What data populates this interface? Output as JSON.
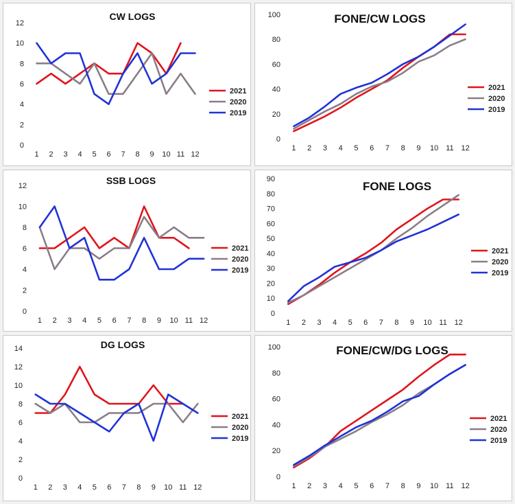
{
  "colors": {
    "2021": "#e0141b",
    "2020": "#8a7d87",
    "2019": "#1f33d6"
  },
  "chart_data": [
    {
      "id": "cw",
      "type": "line",
      "title": "CW LOGS",
      "categories": [
        "1",
        "2",
        "3",
        "4",
        "5",
        "6",
        "7",
        "8",
        "9",
        "10",
        "11",
        "12"
      ],
      "ylim": [
        0,
        12
      ],
      "yticks": [
        "0",
        "2",
        "4",
        "6",
        "8",
        "10",
        "12"
      ],
      "series": [
        {
          "name": "2021",
          "values": [
            6,
            7,
            6,
            7,
            8,
            7,
            7,
            10,
            9,
            7,
            10,
            null
          ]
        },
        {
          "name": "2020",
          "values": [
            8,
            8,
            7,
            6,
            8,
            5,
            5,
            7,
            9,
            5,
            7,
            5
          ]
        },
        {
          "name": "2019",
          "values": [
            10,
            8,
            9,
            9,
            5,
            4,
            7,
            9,
            6,
            7,
            9,
            9
          ]
        }
      ]
    },
    {
      "id": "fonecw",
      "type": "line",
      "title": "FONE/CW LOGS",
      "categories": [
        "1",
        "2",
        "3",
        "4",
        "5",
        "6",
        "7",
        "8",
        "9",
        "10",
        "11",
        "12"
      ],
      "ylim": [
        0,
        100
      ],
      "yticks": [
        "0",
        "20",
        "40",
        "60",
        "80",
        "100"
      ],
      "series": [
        {
          "name": "2021",
          "values": [
            6,
            12,
            18,
            25,
            33,
            40,
            47,
            57,
            66,
            74,
            84,
            84
          ]
        },
        {
          "name": "2020",
          "values": [
            8,
            15,
            22,
            28,
            36,
            42,
            46,
            53,
            62,
            67,
            75,
            80
          ]
        },
        {
          "name": "2019",
          "values": [
            10,
            17,
            26,
            36,
            41,
            45,
            52,
            60,
            66,
            74,
            83,
            92
          ]
        }
      ]
    },
    {
      "id": "ssb",
      "type": "line",
      "title": "SSB LOGS",
      "categories": [
        "1",
        "2",
        "3",
        "4",
        "5",
        "6",
        "7",
        "8",
        "9",
        "10",
        "11",
        "12"
      ],
      "ylim": [
        0,
        12
      ],
      "yticks": [
        "0",
        "2",
        "4",
        "6",
        "8",
        "10",
        "12"
      ],
      "series": [
        {
          "name": "2021",
          "values": [
            6,
            6,
            7,
            8,
            6,
            7,
            6,
            10,
            7,
            7,
            6,
            null
          ]
        },
        {
          "name": "2020",
          "values": [
            8,
            4,
            6,
            6,
            5,
            6,
            6,
            9,
            7,
            8,
            7,
            7
          ]
        },
        {
          "name": "2019",
          "values": [
            8,
            10,
            6,
            7,
            3,
            3,
            4,
            7,
            4,
            4,
            5,
            5
          ]
        }
      ]
    },
    {
      "id": "fone",
      "type": "line",
      "title": "FONE LOGS",
      "categories": [
        "1",
        "2",
        "3",
        "4",
        "5",
        "6",
        "7",
        "8",
        "9",
        "10",
        "11",
        "12"
      ],
      "ylim": [
        0,
        90
      ],
      "yticks": [
        "0",
        "10",
        "20",
        "30",
        "40",
        "50",
        "60",
        "70",
        "80",
        "90"
      ],
      "series": [
        {
          "name": "2021",
          "values": [
            6,
            12,
            19,
            27,
            34,
            40,
            47,
            56,
            63,
            70,
            76,
            76
          ]
        },
        {
          "name": "2020",
          "values": [
            7,
            12,
            18,
            24,
            30,
            36,
            42,
            50,
            57,
            65,
            72,
            79
          ]
        },
        {
          "name": "2019",
          "values": [
            8,
            18,
            24,
            31,
            34,
            37,
            42,
            48,
            52,
            56,
            61,
            66
          ]
        }
      ]
    },
    {
      "id": "dg",
      "type": "line",
      "title": "DG LOGS",
      "categories": [
        "1",
        "2",
        "3",
        "4",
        "5",
        "6",
        "7",
        "8",
        "9",
        "10",
        "11",
        "12"
      ],
      "ylim": [
        0,
        14
      ],
      "yticks": [
        "0",
        "2",
        "4",
        "6",
        "8",
        "10",
        "12",
        "14"
      ],
      "series": [
        {
          "name": "2021",
          "values": [
            7,
            7,
            9,
            12,
            9,
            8,
            8,
            8,
            10,
            8,
            8,
            null
          ]
        },
        {
          "name": "2020",
          "values": [
            8,
            7,
            8,
            6,
            6,
            7,
            7,
            7,
            8,
            8,
            6,
            8
          ]
        },
        {
          "name": "2019",
          "values": [
            9,
            8,
            8,
            7,
            6,
            5,
            7,
            8,
            4,
            9,
            8,
            7
          ]
        }
      ]
    },
    {
      "id": "fonecwdg",
      "type": "line",
      "title": "FONE/CW/DG LOGS",
      "categories": [
        "1",
        "2",
        "3",
        "4",
        "5",
        "6",
        "7",
        "8",
        "9",
        "10",
        "11",
        "12"
      ],
      "ylim": [
        0,
        100
      ],
      "yticks": [
        "0",
        "20",
        "40",
        "60",
        "80",
        "100"
      ],
      "series": [
        {
          "name": "2021",
          "values": [
            7,
            14,
            23,
            35,
            43,
            51,
            59,
            67,
            77,
            86,
            94,
            94
          ]
        },
        {
          "name": "2020",
          "values": [
            8,
            15,
            23,
            29,
            35,
            42,
            48,
            55,
            64,
            71,
            79,
            86
          ]
        },
        {
          "name": "2019",
          "values": [
            9,
            16,
            24,
            31,
            38,
            43,
            50,
            58,
            62,
            71,
            79,
            86
          ]
        }
      ]
    }
  ]
}
